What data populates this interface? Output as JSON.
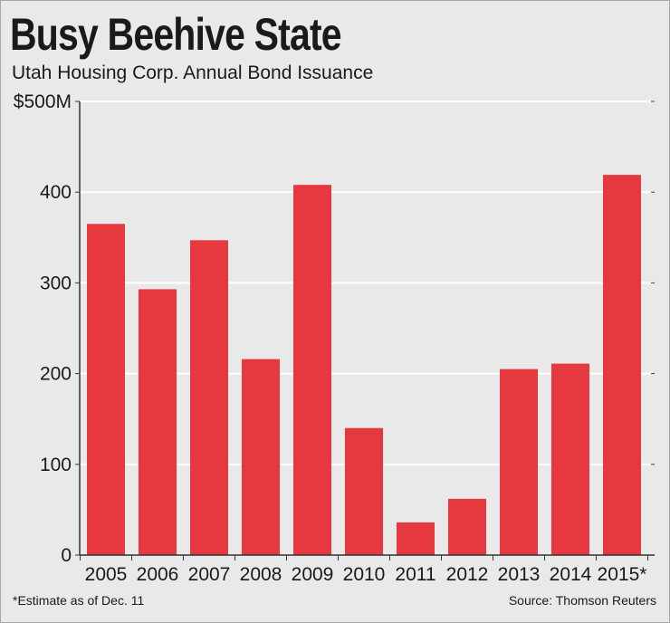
{
  "header": {
    "title": "Busy Beehive State",
    "subtitle": "Utah Housing Corp. Annual Bond Issuance"
  },
  "footer": {
    "footnote": "*Estimate as of Dec. 11",
    "source": "Source: Thomson Reuters"
  },
  "colors": {
    "bar": "#e5383f",
    "gridline": "#ffffff",
    "background": "#e9e9e9",
    "text": "#1a1a1a"
  },
  "chart_data": {
    "type": "bar",
    "title": "Busy Beehive State",
    "subtitle": "Utah Housing Corp. Annual Bond Issuance",
    "xlabel": "",
    "ylabel": "",
    "categories": [
      "2005",
      "2006",
      "2007",
      "2008",
      "2009",
      "2010",
      "2011",
      "2012",
      "2013",
      "2014",
      "2015*"
    ],
    "values": [
      365,
      293,
      347,
      216,
      408,
      140,
      36,
      62,
      205,
      211,
      419
    ],
    "ylim": [
      0,
      500
    ],
    "yticks": [
      0,
      100,
      200,
      300,
      400,
      500
    ],
    "ytick_labels": [
      "0",
      "100",
      "200",
      "300",
      "400",
      "$500M"
    ],
    "grid": true
  }
}
